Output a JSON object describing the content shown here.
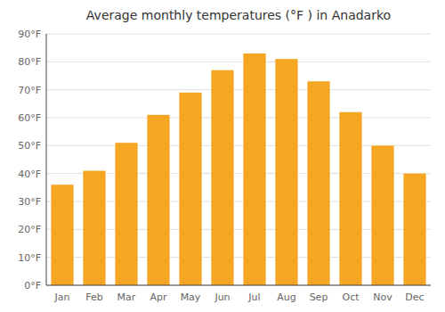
{
  "chart_data": {
    "type": "bar",
    "title": "Average monthly temperatures (°F ) in Anadarko",
    "categories": [
      "Jan",
      "Feb",
      "Mar",
      "Apr",
      "May",
      "Jun",
      "Jul",
      "Aug",
      "Sep",
      "Oct",
      "Nov",
      "Dec"
    ],
    "values": [
      36,
      41,
      51,
      61,
      69,
      77,
      83,
      81,
      73,
      62,
      50,
      40
    ],
    "color": "#F5A623",
    "ylim": [
      0,
      90
    ],
    "yticks": [
      {
        "value": 0,
        "label": "0°F"
      },
      {
        "value": 10,
        "label": "10°F"
      },
      {
        "value": 20,
        "label": "20°F"
      },
      {
        "value": 30,
        "label": "30°F"
      },
      {
        "value": 40,
        "label": "40°F"
      },
      {
        "value": 50,
        "label": "50°F"
      },
      {
        "value": 60,
        "label": "60°F"
      },
      {
        "value": 70,
        "label": "70°F"
      },
      {
        "value": 80,
        "label": "80°F"
      },
      {
        "value": 90,
        "label": "90°F"
      }
    ],
    "grid": true
  }
}
